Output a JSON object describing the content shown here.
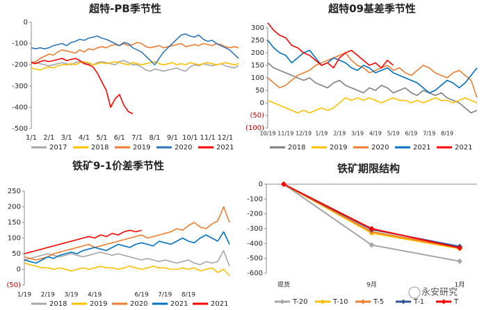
{
  "chart_data": [
    {
      "type": "line",
      "title": "超特-PB季节性",
      "categories": [
        "1/1",
        null,
        null,
        null,
        "2/1",
        null,
        null,
        null,
        "3/1",
        null,
        null,
        null,
        "4/1",
        null,
        null,
        null,
        "5/1",
        null,
        null,
        null,
        "6/1",
        null,
        null,
        null,
        "7/1",
        null,
        null,
        null,
        "8/1",
        null,
        null,
        null,
        "9/1",
        null,
        null,
        null,
        "10/1",
        null,
        null,
        null,
        "11/1",
        null,
        null,
        null,
        "12/1",
        null,
        null,
        null
      ],
      "ylim": [
        -500,
        0
      ],
      "yticks": [
        0,
        -100,
        -200,
        -300,
        -400,
        -500
      ],
      "series": [
        {
          "name": "2017",
          "color": "#a6a6a6",
          "values": [
            -185,
            -190,
            -195,
            -200,
            -205,
            -200,
            -195,
            -190,
            -195,
            -200,
            -190,
            -185,
            -190,
            -195,
            -200,
            -190,
            -185,
            -190,
            -195,
            -200,
            -185,
            -180,
            -190,
            -200,
            -200,
            -210,
            -225,
            -230,
            -220,
            -225,
            -230,
            -225,
            -220,
            -215,
            -225,
            -230,
            -210,
            -200,
            -205,
            -195,
            -200,
            -205,
            -200,
            -195,
            -205,
            -210,
            -215,
            -205
          ]
        },
        {
          "name": "2018",
          "color": "#ffc000",
          "values": [
            -215,
            -220,
            -225,
            -215,
            -210,
            -215,
            -205,
            -200,
            -200,
            -195,
            -200,
            -190,
            -185,
            -190,
            -200,
            -195,
            -190,
            -195,
            -190,
            -185,
            -190,
            -195,
            -200,
            -190,
            -195,
            -200,
            -195,
            -190,
            -185,
            -195,
            -200,
            -195,
            -190,
            -200,
            -195,
            -200,
            -190,
            -195,
            -200,
            -195,
            -190,
            -195,
            -200,
            -195,
            -190,
            -195,
            -200,
            -195
          ]
        },
        {
          "name": "2019",
          "color": "#ed7d31",
          "values": [
            -190,
            -185,
            -170,
            -160,
            -150,
            -155,
            -140,
            -130,
            -135,
            -140,
            -145,
            -130,
            -140,
            -125,
            -130,
            -120,
            -115,
            -120,
            -110,
            -105,
            -110,
            -100,
            -110,
            -105,
            -95,
            -100,
            -115,
            -120,
            -115,
            -110,
            -120,
            -115,
            -110,
            -105,
            -100,
            -115,
            -110,
            -105,
            -110,
            -100,
            -105,
            -110,
            -100,
            -105,
            -115,
            -120,
            -115,
            -120
          ]
        },
        {
          "name": "2020",
          "color": "#2e75b6",
          "values": [
            -120,
            -125,
            -120,
            -125,
            -120,
            -110,
            -105,
            -100,
            -110,
            -95,
            -90,
            -80,
            -85,
            -75,
            -70,
            -65,
            -75,
            -80,
            -90,
            -100,
            -110,
            -95,
            -100,
            -120,
            -130,
            -140,
            -160,
            -180,
            -200,
            -170,
            -140,
            -120,
            -100,
            -80,
            -60,
            -55,
            -65,
            -70,
            -60,
            -80,
            -90,
            -85,
            -100,
            -110,
            -120,
            -130,
            -150,
            -170
          ]
        },
        {
          "name": "2021",
          "color": "#ff0000",
          "values": [
            -190,
            -195,
            -185,
            -180,
            -185,
            -180,
            -175,
            -170,
            -180,
            -175,
            -170,
            -180,
            -195,
            -200,
            -210,
            -240,
            -280,
            -320,
            -400,
            -360,
            -340,
            -390,
            -420,
            -430,
            null,
            null,
            null,
            null,
            null,
            null,
            null,
            null,
            null,
            null,
            null,
            null,
            null,
            null,
            null,
            null,
            null,
            null,
            null,
            null,
            null,
            null,
            null,
            null
          ]
        }
      ]
    },
    {
      "type": "line",
      "title": "超特09基差季节性",
      "categories": [
        "10/19",
        null,
        null,
        "11/19",
        null,
        null,
        "12/19",
        null,
        null,
        "1/19",
        null,
        null,
        "2/19",
        null,
        null,
        "3/19",
        null,
        null,
        "4/19",
        null,
        null,
        "5/19",
        null,
        null,
        "6/19",
        null,
        null,
        "7/19",
        null,
        null,
        "8/19",
        null,
        null,
        null,
        null,
        null
      ],
      "ylim": [
        -100,
        300
      ],
      "yticks": [
        300,
        250,
        200,
        150,
        100,
        50,
        0,
        {
          "value": -50,
          "label": "(50)"
        },
        {
          "value": -100,
          "label": "(100)"
        }
      ],
      "series": [
        {
          "name": "2018",
          "color": "#7f7f7f",
          "values": [
            160,
            140,
            130,
            120,
            110,
            100,
            90,
            100,
            80,
            70,
            60,
            80,
            90,
            70,
            60,
            50,
            40,
            60,
            50,
            70,
            60,
            40,
            50,
            60,
            40,
            30,
            50,
            40,
            30,
            40,
            20,
            10,
            0,
            -20,
            -40,
            -30
          ]
        },
        {
          "name": "2019",
          "color": "#ffc000",
          "values": [
            10,
            0,
            -10,
            -20,
            -30,
            -40,
            -30,
            -40,
            -30,
            -20,
            -30,
            -20,
            0,
            20,
            10,
            20,
            10,
            20,
            10,
            0,
            10,
            20,
            10,
            10,
            0,
            10,
            0,
            10,
            20,
            10,
            10,
            0,
            10,
            20,
            10,
            0
          ]
        },
        {
          "name": "2020",
          "color": "#ed7d31",
          "values": [
            100,
            80,
            60,
            70,
            90,
            110,
            120,
            130,
            150,
            160,
            170,
            180,
            190,
            200,
            170,
            150,
            140,
            120,
            130,
            140,
            150,
            130,
            140,
            120,
            110,
            130,
            150,
            140,
            120,
            110,
            100,
            120,
            130,
            110,
            90,
            20
          ]
        },
        {
          "name": "2021",
          "color": "#0070c0",
          "values": [
            250,
            220,
            200,
            190,
            160,
            180,
            200,
            210,
            180,
            150,
            160,
            180,
            170,
            160,
            140,
            130,
            150,
            140,
            120,
            130,
            140,
            120,
            110,
            100,
            90,
            80,
            60,
            40,
            50,
            70,
            90,
            80,
            60,
            80,
            110,
            140
          ]
        },
        {
          "name": "2021",
          "color": "#ff0000",
          "values": [
            320,
            290,
            270,
            260,
            230,
            220,
            200,
            190,
            170,
            150,
            160,
            140,
            180,
            200,
            210,
            190,
            170,
            150,
            160,
            140,
            170,
            150,
            null,
            null,
            null,
            null,
            null,
            null,
            null,
            null,
            null,
            null,
            null,
            null,
            null,
            null
          ]
        }
      ]
    },
    {
      "type": "line",
      "title": "铁矿9-1价差季节性",
      "categories": [
        "1/19",
        null,
        null,
        null,
        "2/19",
        null,
        null,
        null,
        "3/19",
        null,
        null,
        null,
        "4/19",
        null,
        null,
        null,
        null,
        null,
        null,
        null,
        "6/19",
        null,
        null,
        null,
        "7/19",
        null,
        null,
        null,
        "8/19",
        null,
        null,
        null,
        null,
        null,
        null,
        null
      ],
      "ylim": [
        -50,
        250
      ],
      "yticks": [
        250,
        200,
        150,
        100,
        50,
        0,
        {
          "value": -50,
          "label": "(50)"
        }
      ],
      "series": [
        {
          "name": "2018",
          "color": "#a6a6a6",
          "values": [
            30,
            35,
            40,
            45,
            50,
            45,
            40,
            45,
            50,
            45,
            40,
            45,
            50,
            55,
            50,
            45,
            50,
            45,
            40,
            35,
            30,
            35,
            30,
            25,
            30,
            25,
            20,
            25,
            30,
            20,
            15,
            25,
            20,
            25,
            60,
            10
          ]
        },
        {
          "name": "2019",
          "color": "#ffc000",
          "values": [
            20,
            15,
            10,
            5,
            5,
            0,
            5,
            0,
            -5,
            0,
            5,
            0,
            5,
            10,
            5,
            5,
            0,
            5,
            10,
            5,
            0,
            5,
            10,
            5,
            5,
            0,
            0,
            5,
            0,
            5,
            -5,
            0,
            5,
            -10,
            0,
            -20
          ]
        },
        {
          "name": "2020",
          "color": "#ed7d31",
          "values": [
            40,
            35,
            30,
            35,
            40,
            50,
            55,
            60,
            65,
            70,
            75,
            80,
            70,
            75,
            80,
            85,
            90,
            95,
            100,
            105,
            110,
            100,
            105,
            110,
            115,
            120,
            130,
            125,
            140,
            150,
            135,
            130,
            145,
            155,
            200,
            150
          ]
        },
        {
          "name": "2021",
          "color": "#0070c0",
          "values": [
            30,
            25,
            20,
            30,
            40,
            35,
            45,
            50,
            55,
            50,
            60,
            65,
            70,
            65,
            60,
            70,
            80,
            75,
            70,
            80,
            85,
            80,
            75,
            90,
            85,
            80,
            90,
            100,
            90,
            85,
            100,
            110,
            100,
            90,
            120,
            80
          ]
        },
        {
          "name": "2021",
          "color": "#ff0000",
          "values": [
            50,
            55,
            60,
            65,
            70,
            75,
            80,
            85,
            90,
            95,
            100,
            105,
            100,
            110,
            105,
            115,
            110,
            120,
            125,
            120,
            125,
            null,
            null,
            null,
            null,
            null,
            null,
            null,
            null,
            null,
            null,
            null,
            null,
            null,
            null,
            null
          ]
        }
      ]
    },
    {
      "type": "marker-line",
      "title": "铁矿期限结构",
      "categories": [
        "现货",
        "9月",
        "1月"
      ],
      "ylim": [
        -600,
        0
      ],
      "yticks": [
        0,
        -100,
        -200,
        -300,
        -400,
        -500,
        -600
      ],
      "series": [
        {
          "name": "T-20",
          "color": "#a6a6a6",
          "values": [
            0,
            -410,
            -520
          ]
        },
        {
          "name": "T-10",
          "color": "#ffc000",
          "values": [
            0,
            -330,
            -435
          ]
        },
        {
          "name": "T-5",
          "color": "#ed7d31",
          "values": [
            0,
            -320,
            -430
          ]
        },
        {
          "name": "T-1",
          "color": "#2f5597",
          "values": [
            0,
            -305,
            -420
          ]
        },
        {
          "name": "T",
          "color": "#ff0000",
          "values": [
            0,
            -300,
            -430
          ]
        }
      ]
    }
  ],
  "watermark": "永安研究"
}
